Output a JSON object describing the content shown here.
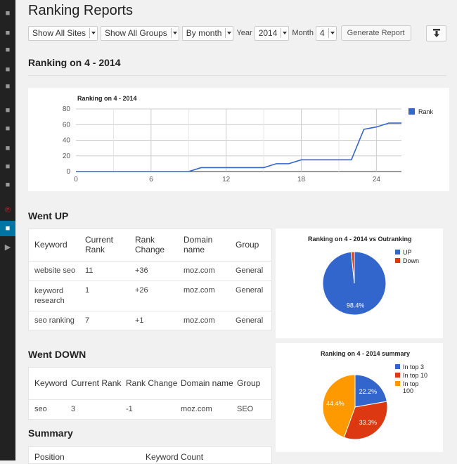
{
  "page": {
    "title": "Ranking Reports"
  },
  "filters": {
    "sites": "Show All Sites",
    "groups": "Show All Groups",
    "period": "By month",
    "year_label": "Year",
    "year": "2014",
    "month_label": "Month",
    "month": "4",
    "generate_label": "Generate Report"
  },
  "sidebar_icons": [
    "dashboard-icon",
    "pin-icon",
    "media-icon",
    "pages-icon",
    "comments-icon",
    "appearance-icon",
    "plugins-icon",
    "users-icon",
    "tools-icon",
    "settings-icon",
    "pinterest-icon",
    "rankings-icon",
    "play-icon"
  ],
  "section_title": "Ranking on 4 - 2014",
  "line_chart": {
    "chart_data": {
      "type": "line",
      "title": "Ranking on 4 - 2014",
      "x_ticks": [
        "0",
        "6",
        "12",
        "18",
        "24"
      ],
      "y_ticks": [
        "0",
        "20",
        "40",
        "60",
        "80"
      ],
      "xlim": [
        0,
        26
      ],
      "ylim": [
        0,
        80
      ],
      "grid": true,
      "legend_position": "right",
      "series": [
        {
          "name": "Rank",
          "color": "#3366cc",
          "x": [
            0,
            1,
            2,
            3,
            4,
            5,
            6,
            7,
            8,
            9,
            10,
            11,
            12,
            13,
            14,
            15,
            16,
            17,
            18,
            19,
            20,
            21,
            22,
            23,
            24,
            25,
            26
          ],
          "values": [
            0,
            0,
            0,
            0,
            0,
            0,
            0,
            0,
            0,
            0,
            5,
            5,
            5,
            5,
            5,
            5,
            10,
            10,
            15,
            15,
            15,
            15,
            15,
            54,
            57,
            62,
            62
          ]
        }
      ]
    }
  },
  "went_up": {
    "title": "Went UP",
    "headers": [
      "Keyword",
      "Current Rank",
      "Rank Change",
      "Domain name",
      "Group"
    ],
    "rows": [
      [
        "website seo",
        "11",
        "+36",
        "moz.com",
        "General"
      ],
      [
        "keyword research",
        "1",
        "+26",
        "moz.com",
        "General"
      ],
      [
        "seo ranking",
        "7",
        "+1",
        "moz.com",
        "General"
      ]
    ]
  },
  "went_down": {
    "title": "Went DOWN",
    "headers": [
      "Keyword",
      "Current Rank",
      "Rank Change",
      "Domain name",
      "Group"
    ],
    "rows": [
      [
        "seo",
        "3",
        "-1",
        "moz.com",
        "SEO"
      ]
    ]
  },
  "summary": {
    "title": "Summary",
    "headers": [
      "Position",
      "Keyword Count"
    ]
  },
  "pie_outranking": {
    "chart_data": {
      "type": "pie",
      "title": "Ranking on 4 - 2014 vs Outranking",
      "labels": [
        "UP",
        "Down"
      ],
      "values": [
        98.4,
        1.6
      ],
      "colors": [
        "#3366cc",
        "#dc3912"
      ],
      "slice_labels": [
        "98.4%",
        ""
      ],
      "legend_position": "right"
    }
  },
  "pie_summary": {
    "chart_data": {
      "type": "pie",
      "title": "Ranking on 4 - 2014 summary",
      "labels": [
        "In top 3",
        "In top 10",
        "In top 100"
      ],
      "values": [
        22.2,
        33.3,
        44.4
      ],
      "colors": [
        "#3366cc",
        "#dc3912",
        "#ff9900"
      ],
      "slice_labels": [
        "22.2%",
        "33.3%",
        "44.4%"
      ],
      "legend_position": "right"
    }
  }
}
